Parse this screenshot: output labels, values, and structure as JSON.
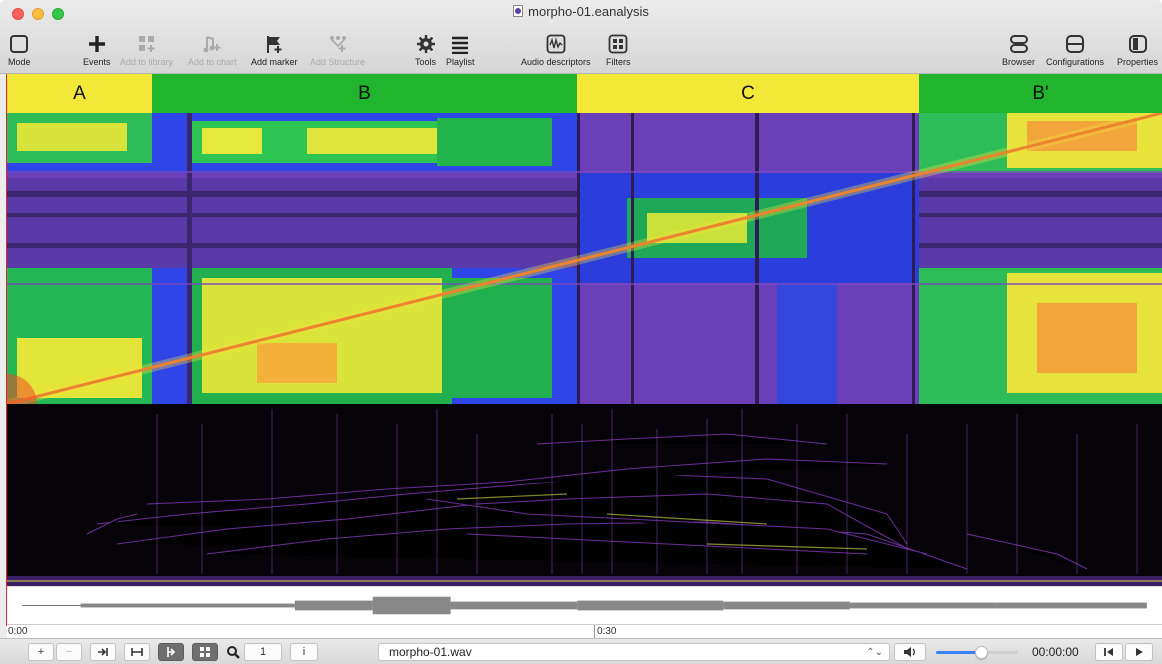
{
  "window": {
    "title": "morpho-01.eanalysis"
  },
  "toolbar": {
    "mode": "Mode",
    "events": "Events",
    "add_to_library": "Add to library",
    "add_to_chart": "Add to chart",
    "add_marker": "Add marker",
    "add_structure": "Add Structure",
    "tools": "Tools",
    "playlist": "Playlist",
    "audio_descriptors": "Audio descriptors",
    "filters": "Filters",
    "browser": "Browser",
    "configurations": "Configurations",
    "properties": "Properties"
  },
  "sections": [
    {
      "label": "A",
      "color": "#f3e838"
    },
    {
      "label": "B",
      "color": "#21b42d"
    },
    {
      "label": "C",
      "color": "#f3e838"
    },
    {
      "label": "B'",
      "color": "#21b42d"
    }
  ],
  "ruler": {
    "start": "0:00",
    "mid": "0:30"
  },
  "bottom": {
    "zoom_value": "1",
    "info": "i",
    "file": "morpho-01.wav",
    "time": "00:00:00",
    "volume": 0.55
  },
  "colors": {
    "accent": "#3b82f6",
    "marker": "#e0262b"
  }
}
